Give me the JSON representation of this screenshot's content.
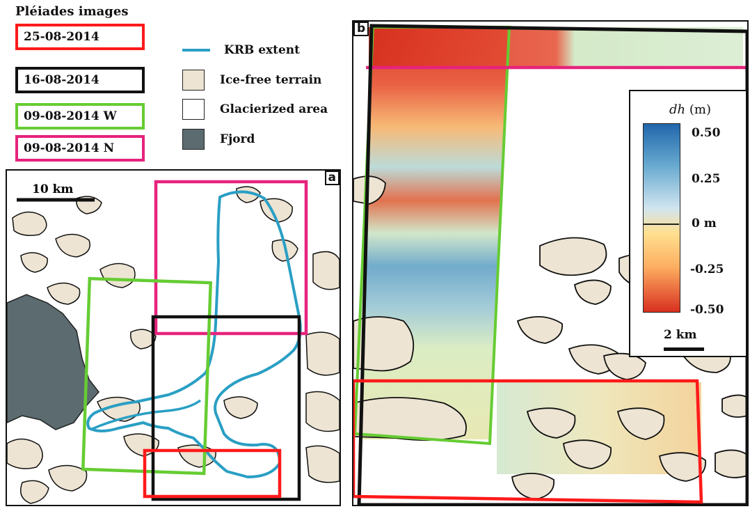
{
  "legend": {
    "title": "Pléiades images",
    "images": [
      {
        "label": "25-08-2014",
        "color": "#ff1a1a"
      },
      {
        "label": "16-08-2014",
        "color": "#111111"
      },
      {
        "label": "09-08-2014 W",
        "color": "#66cc33"
      },
      {
        "label": "09-08-2014 N",
        "color": "#e6237c"
      }
    ],
    "symbols": [
      {
        "label": "KRB extent",
        "kind": "line",
        "color": "#2a9fc4"
      },
      {
        "label": "Ice-free terrain",
        "kind": "fill",
        "color": "#ede4d3"
      },
      {
        "label": "Glacierized area",
        "kind": "fill",
        "color": "#ffffff"
      },
      {
        "label": "Fjord",
        "kind": "fill",
        "color": "#5b6b70"
      }
    ]
  },
  "panel_a": {
    "label": "a",
    "scale_bar": "10 km"
  },
  "panel_b": {
    "label": "b",
    "scale_bar": "2 km",
    "colorbar": {
      "title_var": "dh",
      "title_unit": " (m)",
      "ticks": [
        "0.50",
        "0.25",
        "0 m",
        "-0.25",
        "-0.50"
      ],
      "colors": [
        "#2166ac",
        "#67a9cf",
        "#d1e5f0",
        "#fee090",
        "#fdae61",
        "#d7301f"
      ]
    }
  }
}
